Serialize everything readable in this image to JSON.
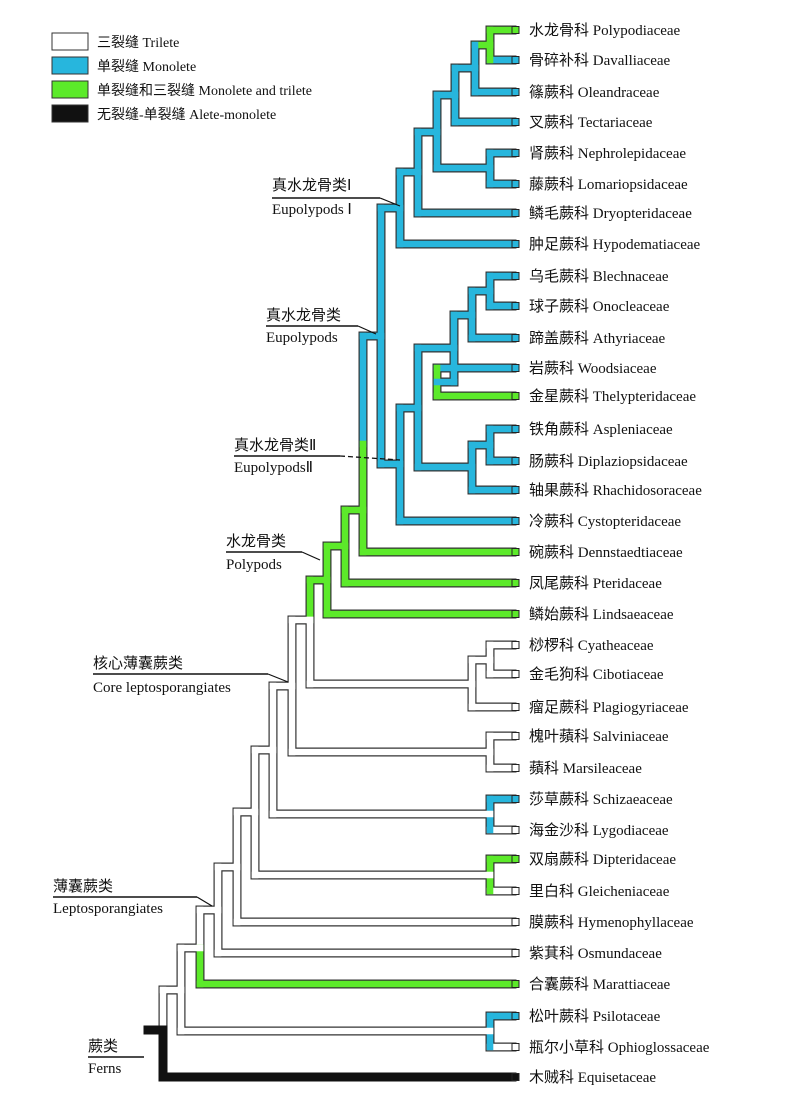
{
  "colors": {
    "trilete": "#ffffff",
    "monolete": "#27b6dd",
    "mixed": "#5cea2a",
    "alete": "#111111",
    "outline": "#333333"
  },
  "legend": [
    {
      "key": "trilete",
      "label": "三裂缝 Trilete"
    },
    {
      "key": "monolete",
      "label": "单裂缝 Monolete"
    },
    {
      "key": "mixed",
      "label": "单裂缝和三裂缝 Monolete and trilete"
    },
    {
      "key": "alete",
      "label": "无裂缝-单裂缝 Alete-monolete"
    }
  ],
  "clades": [
    {
      "cn": "真水龙骨类Ⅰ",
      "en": "Eupolypods Ⅰ"
    },
    {
      "cn": "真水龙骨类",
      "en": "Eupolypods"
    },
    {
      "cn": "真水龙骨类Ⅱ",
      "en": "EupolypodsⅡ"
    },
    {
      "cn": "水龙骨类",
      "en": "Polypods"
    },
    {
      "cn": "核心薄囊蕨类",
      "en": "Core leptosporangiates"
    },
    {
      "cn": "薄囊蕨类",
      "en": "Leptosporangiates"
    },
    {
      "cn": "蕨类",
      "en": "Ferns"
    }
  ],
  "taxa": [
    {
      "cn": "水龙骨科",
      "en": "Polypodiaceae",
      "state": "mixed"
    },
    {
      "cn": "骨碎补科",
      "en": "Davalliaceae",
      "state": "monolete"
    },
    {
      "cn": "篠蕨科",
      "en": "Oleandraceae",
      "state": "monolete"
    },
    {
      "cn": "叉蕨科",
      "en": "Tectariaceae",
      "state": "monolete"
    },
    {
      "cn": "肾蕨科",
      "en": "Nephrolepidaceae",
      "state": "monolete"
    },
    {
      "cn": "藤蕨科",
      "en": "Lomariopsidaceae",
      "state": "monolete"
    },
    {
      "cn": "鳞毛蕨科",
      "en": "Dryopteridaceae",
      "state": "monolete"
    },
    {
      "cn": "肿足蕨科",
      "en": "Hypodematiaceae",
      "state": "monolete"
    },
    {
      "cn": "乌毛蕨科",
      "en": "Blechnaceae",
      "state": "monolete"
    },
    {
      "cn": "球子蕨科",
      "en": "Onocleaceae",
      "state": "monolete"
    },
    {
      "cn": "蹄盖蕨科",
      "en": "Athyriaceae",
      "state": "monolete"
    },
    {
      "cn": "岩蕨科",
      "en": "Woodsiaceae",
      "state": "monolete"
    },
    {
      "cn": "金星蕨科",
      "en": "Thelypteridaceae",
      "state": "mixed"
    },
    {
      "cn": "铁角蕨科",
      "en": "Aspleniaceae",
      "state": "monolete"
    },
    {
      "cn": "肠蕨科",
      "en": "Diplaziopsidaceae",
      "state": "monolete"
    },
    {
      "cn": "轴果蕨科",
      "en": "Rhachidosoraceae",
      "state": "monolete"
    },
    {
      "cn": "冷蕨科",
      "en": "Cystopteridaceae",
      "state": "monolete"
    },
    {
      "cn": "碗蕨科",
      "en": "Dennstaedtiaceae",
      "state": "mixed"
    },
    {
      "cn": "凤尾蕨科",
      "en": "Pteridaceae",
      "state": "mixed"
    },
    {
      "cn": "鳞始蕨科",
      "en": "Lindsaeaceae",
      "state": "mixed"
    },
    {
      "cn": "桫椤科",
      "en": "Cyatheaceae",
      "state": "trilete"
    },
    {
      "cn": "金毛狗科",
      "en": "Cibotiaceae",
      "state": "trilete"
    },
    {
      "cn": "瘤足蕨科",
      "en": "Plagiogyriaceae",
      "state": "trilete"
    },
    {
      "cn": "槐叶蘋科",
      "en": "Salviniaceae",
      "state": "trilete"
    },
    {
      "cn": "蘋科",
      "en": "Marsileaceae",
      "state": "trilete"
    },
    {
      "cn": "莎草蕨科",
      "en": "Schizaeaceae",
      "state": "monolete"
    },
    {
      "cn": "海金沙科",
      "en": "Lygodiaceae",
      "state": "trilete"
    },
    {
      "cn": "双扇蕨科",
      "en": "Dipteridaceae",
      "state": "mixed"
    },
    {
      "cn": "里白科",
      "en": "Gleicheniaceae",
      "state": "trilete"
    },
    {
      "cn": "膜蕨科",
      "en": "Hymenophyllaceae",
      "state": "trilete"
    },
    {
      "cn": "紫萁科",
      "en": "Osmundaceae",
      "state": "trilete"
    },
    {
      "cn": "合囊蕨科",
      "en": "Marattiaceae",
      "state": "mixed"
    },
    {
      "cn": "松叶蕨科",
      "en": "Psilotaceae",
      "state": "monolete"
    },
    {
      "cn": "瓶尔小草科",
      "en": "Ophioglossaceae",
      "state": "trilete"
    },
    {
      "cn": "木贼科",
      "en": "Equisetaceae",
      "state": "alete"
    }
  ]
}
